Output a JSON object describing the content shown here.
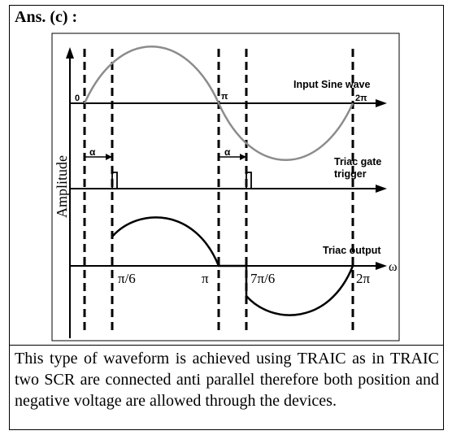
{
  "heading": "Ans. (c) :",
  "diagram": {
    "y_axis_label": "Amplitude",
    "omega_symbol": "ω",
    "alpha_symbol": "α",
    "traces": {
      "input": "Input Sine wave",
      "gate_line1": "Triac gate",
      "gate_line2": "trigger",
      "output": "Triac output"
    },
    "input_ticks": [
      "0",
      "π",
      "2π"
    ],
    "output_ticks": [
      "π/6",
      "π",
      "7π/6",
      "2π"
    ]
  },
  "explanation": "This type of waveform is achieved using TRAIC as in TRAIC two SCR are connected anti parallel therefore both position and negative voltage are allowed through the devices."
}
